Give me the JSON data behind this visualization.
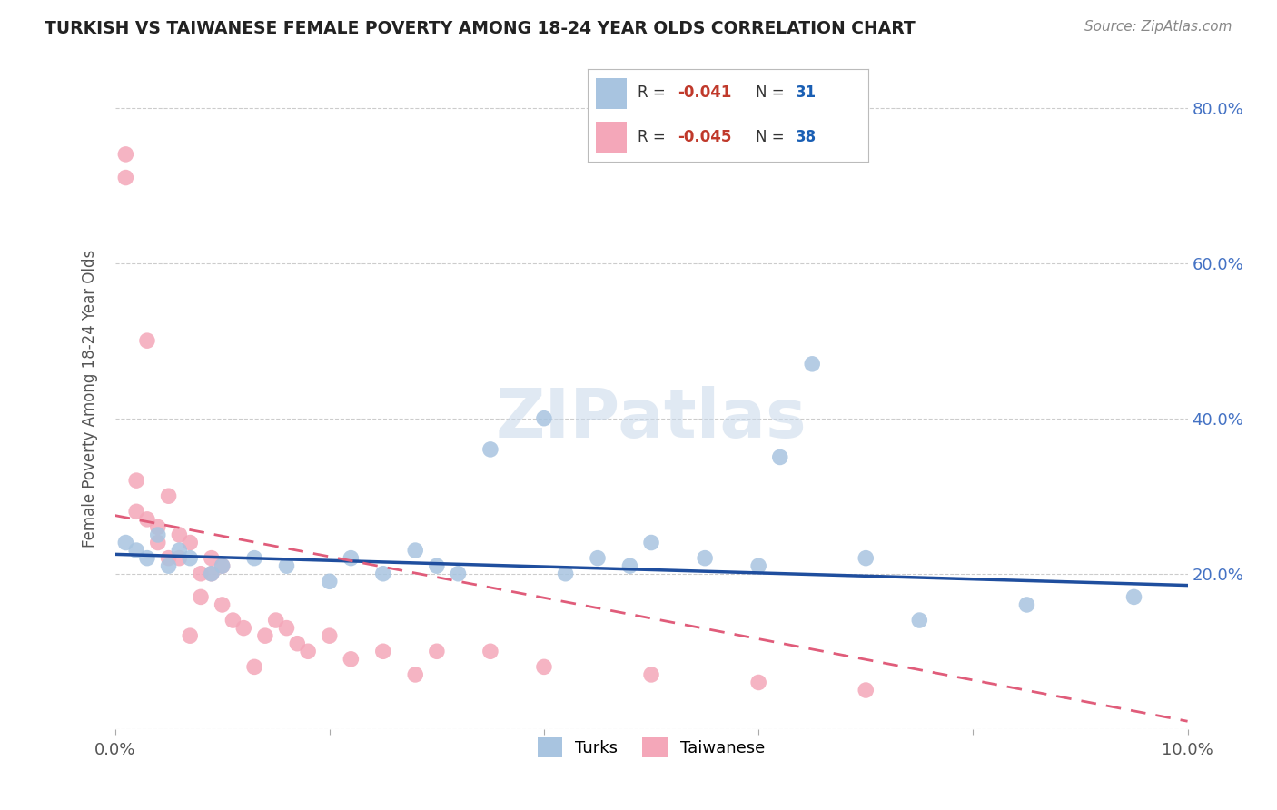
{
  "title": "TURKISH VS TAIWANESE FEMALE POVERTY AMONG 18-24 YEAR OLDS CORRELATION CHART",
  "source": "Source: ZipAtlas.com",
  "ylabel": "Female Poverty Among 18-24 Year Olds",
  "xlim": [
    0.0,
    0.1
  ],
  "ylim": [
    0.0,
    0.85
  ],
  "x_tick_positions": [
    0.0,
    0.02,
    0.04,
    0.06,
    0.08,
    0.1
  ],
  "x_tick_labels": [
    "0.0%",
    "",
    "",
    "",
    "",
    "10.0%"
  ],
  "y_tick_positions": [
    0.0,
    0.2,
    0.4,
    0.6,
    0.8
  ],
  "y_tick_labels_right": [
    "",
    "20.0%",
    "40.0%",
    "60.0%",
    "80.0%"
  ],
  "turks_color": "#a8c4e0",
  "taiwanese_color": "#f4a7b9",
  "turks_line_color": "#1f4e9e",
  "taiwanese_line_color": "#e05c7a",
  "legend_R_color": "#c0392b",
  "legend_N_color": "#1a5fb4",
  "turks_R": "-0.041",
  "turks_N": "31",
  "taiwanese_R": "-0.045",
  "taiwanese_N": "38",
  "turks_x": [
    0.001,
    0.002,
    0.003,
    0.004,
    0.005,
    0.006,
    0.007,
    0.009,
    0.01,
    0.013,
    0.016,
    0.02,
    0.022,
    0.025,
    0.028,
    0.03,
    0.032,
    0.035,
    0.04,
    0.042,
    0.045,
    0.048,
    0.05,
    0.055,
    0.06,
    0.062,
    0.065,
    0.07,
    0.075,
    0.085,
    0.095
  ],
  "turks_y": [
    0.24,
    0.23,
    0.22,
    0.25,
    0.21,
    0.23,
    0.22,
    0.2,
    0.21,
    0.22,
    0.21,
    0.19,
    0.22,
    0.2,
    0.23,
    0.21,
    0.2,
    0.36,
    0.4,
    0.2,
    0.22,
    0.21,
    0.24,
    0.22,
    0.21,
    0.35,
    0.47,
    0.22,
    0.14,
    0.16,
    0.17
  ],
  "taiwanese_x": [
    0.001,
    0.001,
    0.002,
    0.002,
    0.003,
    0.003,
    0.004,
    0.004,
    0.005,
    0.005,
    0.006,
    0.006,
    0.007,
    0.007,
    0.008,
    0.008,
    0.009,
    0.009,
    0.01,
    0.01,
    0.011,
    0.012,
    0.013,
    0.014,
    0.015,
    0.016,
    0.017,
    0.018,
    0.02,
    0.022,
    0.025,
    0.028,
    0.03,
    0.035,
    0.04,
    0.05,
    0.06,
    0.07
  ],
  "taiwanese_y": [
    0.74,
    0.71,
    0.32,
    0.28,
    0.27,
    0.5,
    0.26,
    0.24,
    0.3,
    0.22,
    0.25,
    0.22,
    0.24,
    0.12,
    0.2,
    0.17,
    0.22,
    0.2,
    0.21,
    0.16,
    0.14,
    0.13,
    0.08,
    0.12,
    0.14,
    0.13,
    0.11,
    0.1,
    0.12,
    0.09,
    0.1,
    0.07,
    0.1,
    0.1,
    0.08,
    0.07,
    0.06,
    0.05
  ],
  "turks_line_x0": 0.0,
  "turks_line_y0": 0.225,
  "turks_line_x1": 0.1,
  "turks_line_y1": 0.185,
  "tai_line_x0": 0.0,
  "tai_line_y0": 0.275,
  "tai_line_x1": 0.1,
  "tai_line_y1": 0.01,
  "background_color": "#ffffff",
  "grid_color": "#cccccc",
  "watermark": "ZIPatlas"
}
